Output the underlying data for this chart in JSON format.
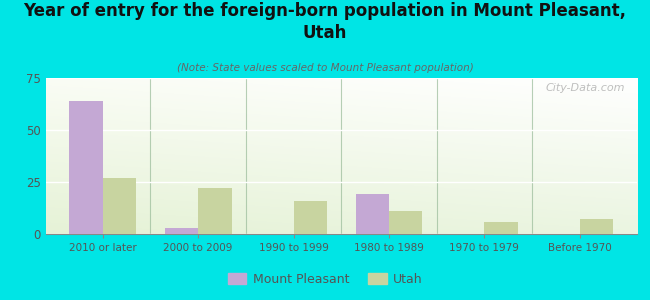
{
  "title": "Year of entry for the foreign-born population in Mount Pleasant,\nUtah",
  "subtitle": "(Note: State values scaled to Mount Pleasant population)",
  "categories": [
    "2010 or later",
    "2000 to 2009",
    "1990 to 1999",
    "1980 to 1989",
    "1970 to 1979",
    "Before 1970"
  ],
  "mount_pleasant": [
    64,
    3,
    0,
    19,
    0,
    0
  ],
  "utah": [
    27,
    22,
    16,
    11,
    6,
    7
  ],
  "mount_pleasant_color": "#c4a8d4",
  "utah_color": "#c8d4a0",
  "background_color": "#00e5e5",
  "ylim": [
    0,
    75
  ],
  "yticks": [
    0,
    25,
    50,
    75
  ],
  "watermark": "City-Data.com",
  "bar_width": 0.35
}
